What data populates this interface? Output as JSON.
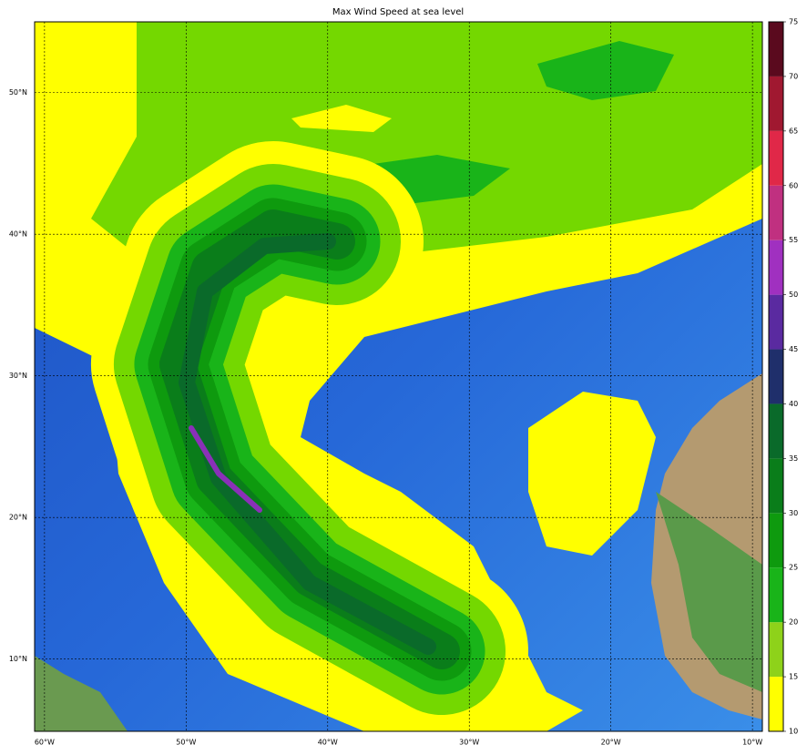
{
  "title": "Max Wind Speed at sea level",
  "map": {
    "xlim": [
      -60.7,
      -9.3
    ],
    "ylim": [
      4.9,
      55
    ],
    "xticks": [
      {
        "value": -60,
        "label": "60°W"
      },
      {
        "value": -50,
        "label": "50°W"
      },
      {
        "value": -40,
        "label": "40°W"
      },
      {
        "value": -30,
        "label": "30°W"
      },
      {
        "value": -20,
        "label": "20°W"
      },
      {
        "value": -10,
        "label": "10°W"
      }
    ],
    "yticks": [
      {
        "value": 10,
        "label": "10°N"
      },
      {
        "value": 20,
        "label": "20°N"
      },
      {
        "value": 30,
        "label": "30°N"
      },
      {
        "value": 40,
        "label": "40°N"
      },
      {
        "value": 50,
        "label": "50°N"
      }
    ],
    "grid": true
  },
  "colorbar": {
    "levels": [
      10,
      15,
      20,
      25,
      30,
      35,
      40,
      45,
      50,
      55,
      60,
      65,
      70,
      75
    ],
    "colors": [
      "#ffff00",
      "#8ed21a",
      "#19b419",
      "#0e9a0e",
      "#0a7d1a",
      "#0a6a2a",
      "#1f2f6b",
      "#5a2aa0",
      "#a030c0",
      "#c03080",
      "#e02848",
      "#a01830",
      "#5a0a1e"
    ]
  }
}
